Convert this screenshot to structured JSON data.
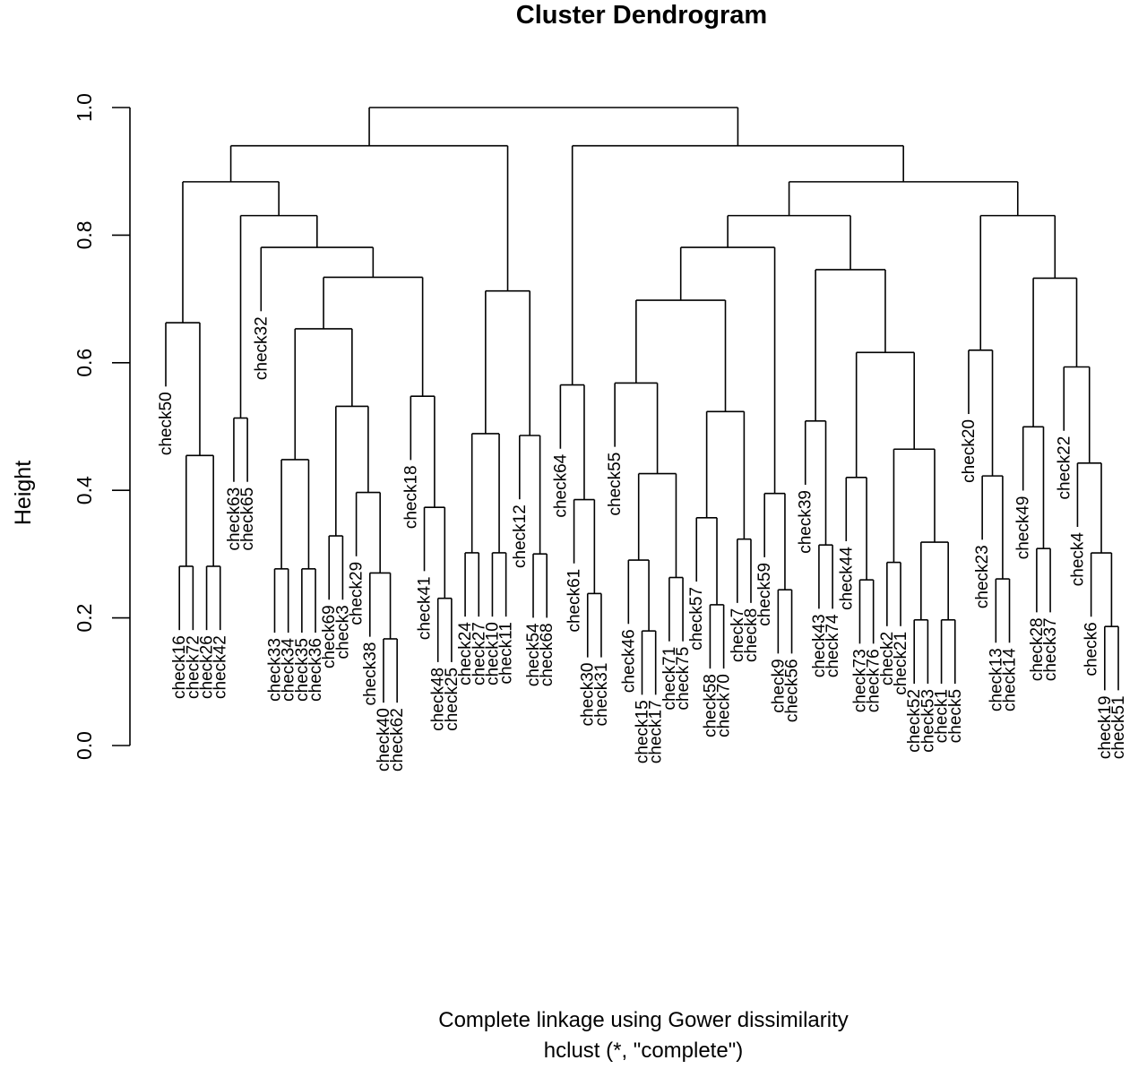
{
  "chart_data": {
    "type": "dendrogram",
    "title": "Cluster Dendrogram",
    "ylabel": "Height",
    "ylim": [
      0,
      1
    ],
    "yticks": [
      "0.0",
      "0.2",
      "0.4",
      "0.6",
      "0.8",
      "1.0"
    ],
    "xlabel": "Complete linkage using Gower dissimilarity",
    "sub": "hclust (*, \"complete\")",
    "leaves": [
      "check50",
      "check16",
      "check72",
      "check26",
      "check42",
      "check63",
      "check65",
      "check32",
      "check33",
      "check34",
      "check35",
      "check36",
      "check69",
      "check3",
      "check29",
      "check38",
      "check40",
      "check62",
      "check18",
      "check41",
      "check48",
      "check25",
      "check24",
      "check27",
      "check10",
      "check11",
      "check12",
      "check54",
      "check68",
      "check64",
      "check61",
      "check30",
      "check31",
      "check55",
      "check46",
      "check15",
      "check17",
      "check71",
      "check75",
      "check57",
      "check58",
      "check70",
      "check7",
      "check8",
      "check59",
      "check9",
      "check56",
      "check39",
      "check43",
      "check74",
      "check44",
      "check73",
      "check76",
      "check2",
      "check21",
      "check52",
      "check53",
      "check1",
      "check5",
      "check20",
      "check23",
      "check13",
      "check14",
      "check49",
      "check28",
      "check37",
      "check22",
      "check4",
      "check6",
      "check19",
      "check51"
    ],
    "tree": [
      [
        [
          [
            "check50",
            [
              [
                "check16",
                "check72"
              ],
              [
                "check26",
                "check42"
              ]
            ]
          ],
          [
            [
              "check63",
              "check65"
            ],
            [
              "check32",
              [
                [
                  [
                    [
                      "check33",
                      "check34"
                    ],
                    [
                      "check35",
                      "check36"
                    ]
                  ],
                  [
                    [
                      "check69",
                      "check3"
                    ],
                    [
                      "check29",
                      [
                        "check38",
                        [
                          "check40",
                          "check62"
                        ]
                      ]
                    ]
                  ]
                ],
                [
                  "check18",
                  [
                    "check41",
                    [
                      "check48",
                      "check25"
                    ]
                  ]
                ]
              ]
            ]
          ]
        ],
        [
          [
            [
              "check24",
              "check27"
            ],
            [
              "check10",
              "check11"
            ]
          ],
          [
            "check12",
            [
              "check54",
              "check68"
            ]
          ]
        ]
      ],
      [
        [
          [
            "check64",
            [
              "check61",
              [
                "check30",
                "check31"
              ]
            ]
          ]
        ],
        [
          [
            [
              [
                [
                  "check55",
                  [
                    [
                      "check46",
                      [
                        "check15",
                        "check17"
                      ]
                    ],
                    [
                      "check71",
                      "check75"
                    ]
                  ]
                ],
                [
                  [
                    "check57",
                    [
                      "check58",
                      "check70"
                    ]
                  ],
                  [
                    "check7",
                    "check8"
                  ]
                ]
              ],
              [
                [
                  "check59",
                  [
                    "check9",
                    "check56"
                  ]
                ]
              ]
            ],
            [
              [
                "check39",
                [
                  "check43",
                  "check74"
                ]
              ],
              [
                [
                  "check44",
                  [
                    "check73",
                    "check76"
                  ]
                ],
                [
                  [
                    "check2",
                    "check21"
                  ],
                  [
                    [
                      "check52",
                      "check53"
                    ],
                    [
                      "check1",
                      "check5"
                    ]
                  ]
                ]
              ]
            ]
          ],
          [
            [
              "check20",
              [
                "check23",
                [
                  "check13",
                  "check14"
                ]
              ]
            ],
            [
              [
                "check49",
                [
                  "check28",
                  "check37"
                ]
              ],
              [
                "check22",
                [
                  "check4",
                  [
                    "check6",
                    [
                      "check19",
                      "check51"
                    ]
                  ]
                ]
              ]
            ]
          ]
        ]
      ]
    ]
  }
}
